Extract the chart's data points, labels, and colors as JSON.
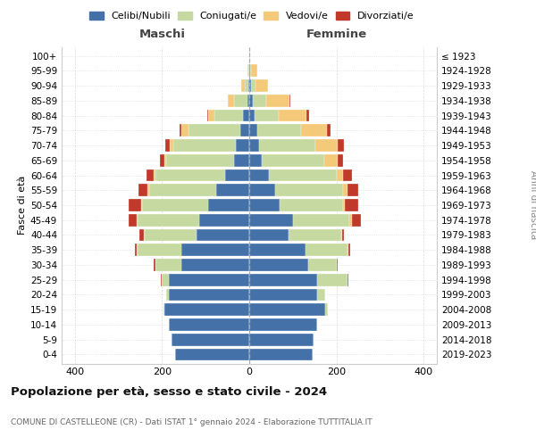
{
  "age_groups": [
    "0-4",
    "5-9",
    "10-14",
    "15-19",
    "20-24",
    "25-29",
    "30-34",
    "35-39",
    "40-44",
    "45-49",
    "50-54",
    "55-59",
    "60-64",
    "65-69",
    "70-74",
    "75-79",
    "80-84",
    "85-89",
    "90-94",
    "95-99",
    "100+"
  ],
  "birth_years": [
    "2019-2023",
    "2014-2018",
    "2009-2013",
    "2004-2008",
    "1999-2003",
    "1994-1998",
    "1989-1993",
    "1984-1988",
    "1979-1983",
    "1974-1978",
    "1969-1973",
    "1964-1968",
    "1959-1963",
    "1954-1958",
    "1949-1953",
    "1944-1948",
    "1939-1943",
    "1934-1938",
    "1929-1933",
    "1924-1928",
    "≤ 1923"
  ],
  "males_celibi": [
    170,
    178,
    185,
    195,
    185,
    185,
    155,
    155,
    120,
    115,
    95,
    75,
    55,
    35,
    30,
    20,
    15,
    5,
    2,
    0,
    0
  ],
  "males_coniugati": [
    0,
    0,
    0,
    2,
    5,
    15,
    60,
    100,
    120,
    140,
    150,
    155,
    160,
    155,
    145,
    120,
    65,
    30,
    8,
    2,
    0
  ],
  "males_vedovi": [
    0,
    0,
    0,
    0,
    0,
    0,
    0,
    2,
    2,
    2,
    2,
    3,
    5,
    5,
    8,
    15,
    15,
    15,
    8,
    2,
    0
  ],
  "males_divorziati": [
    0,
    0,
    0,
    0,
    0,
    2,
    5,
    5,
    10,
    20,
    30,
    20,
    15,
    10,
    10,
    5,
    2,
    0,
    0,
    0,
    0
  ],
  "females_nubili": [
    145,
    148,
    155,
    175,
    155,
    155,
    135,
    130,
    90,
    100,
    70,
    60,
    45,
    28,
    22,
    18,
    12,
    8,
    5,
    2,
    0
  ],
  "females_coniugate": [
    0,
    0,
    0,
    5,
    20,
    70,
    65,
    95,
    120,
    130,
    145,
    155,
    155,
    145,
    130,
    100,
    55,
    30,
    10,
    2,
    0
  ],
  "females_vedove": [
    0,
    0,
    0,
    0,
    0,
    0,
    0,
    2,
    2,
    5,
    5,
    10,
    15,
    30,
    50,
    60,
    65,
    55,
    28,
    14,
    2
  ],
  "females_divorziate": [
    0,
    0,
    0,
    0,
    0,
    2,
    3,
    5,
    5,
    20,
    30,
    25,
    20,
    12,
    15,
    8,
    5,
    2,
    0,
    0,
    0
  ],
  "colors": {
    "celibi": "#4472a8",
    "coniugati": "#c5d9a0",
    "vedovi": "#f5c97a",
    "divorziati": "#c0392b"
  },
  "xlim": [
    -430,
    430
  ],
  "xticks": [
    -400,
    -200,
    0,
    200,
    400
  ],
  "xticklabels": [
    "400",
    "200",
    "0",
    "200",
    "400"
  ],
  "title": "Popolazione per età, sesso e stato civile - 2024",
  "subtitle": "COMUNE DI CASTELLEONE (CR) - Dati ISTAT 1° gennaio 2024 - Elaborazione TUTTITALIA.IT",
  "ylabel_left": "Fasce di età",
  "ylabel_right": "Anni di nascita",
  "label_maschi": "Maschi",
  "label_femmine": "Femmine",
  "legend_labels": [
    "Celibi/Nubili",
    "Coniugati/e",
    "Vedovi/e",
    "Divorziati/e"
  ],
  "bg_color": "#ffffff",
  "grid_color": "#cccccc"
}
